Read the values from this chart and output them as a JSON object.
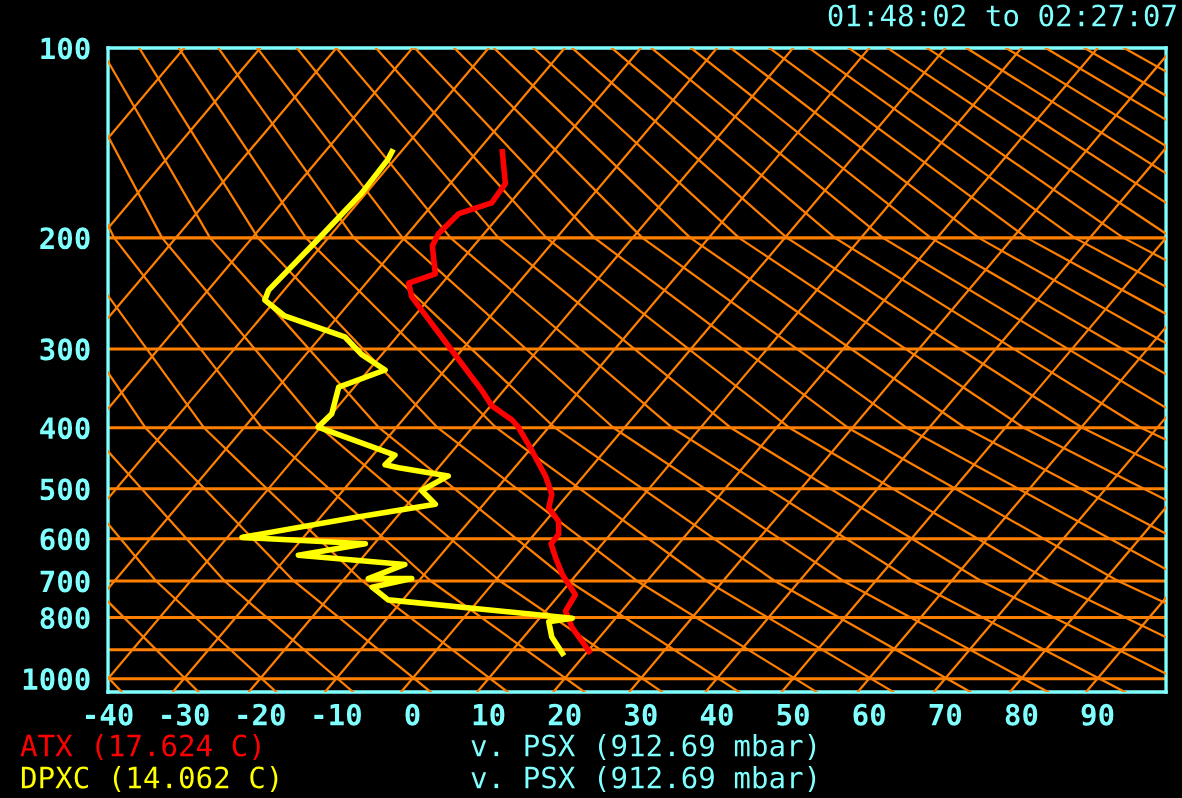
{
  "chart_data": {
    "type": "line",
    "xlim": [
      -40,
      99
    ],
    "xticks": [
      -40,
      -30,
      -20,
      -10,
      0,
      10,
      20,
      30,
      40,
      50,
      60,
      70,
      80,
      90
    ],
    "ylim": [
      1050,
      100
    ],
    "log": "y",
    "yticks": [
      100,
      200,
      300,
      400,
      500,
      600,
      700,
      800,
      {
        "value": 900,
        "label": null
      },
      1000
    ],
    "grid": "y",
    "line_style": "solid",
    "marker": "none",
    "series": [
      {
        "color": "#ff8000",
        "x": [
          -40,
          -30
        ],
        "values": [
          139,
          100
        ]
      },
      {
        "color": "#ff8000",
        "x": [
          -40,
          -20
        ],
        "values": [
          193,
          100
        ]
      },
      {
        "color": "#ff8000",
        "x": [
          -40,
          -10
        ],
        "values": [
          268,
          100
        ]
      },
      {
        "color": "#ff8000",
        "x": [
          -40,
          0
        ],
        "values": [
          373,
          100
        ]
      },
      {
        "color": "#ff8000",
        "x": [
          -40,
          10
        ],
        "values": [
          518,
          100
        ]
      },
      {
        "color": "#ff8000",
        "x": [
          -40,
          20
        ],
        "values": [
          720,
          100
        ]
      },
      {
        "color": "#ff8000",
        "x": [
          -40,
          30
        ],
        "values": [
          1000,
          100
        ]
      },
      {
        "color": "#ff8000",
        "x": [
          -31.5,
          40
        ],
        "values": [
          1050,
          100
        ]
      },
      {
        "color": "#ff8000",
        "x": [
          -21.5,
          50
        ],
        "values": [
          1050,
          100
        ]
      },
      {
        "color": "#ff8000",
        "x": [
          -11.5,
          60
        ],
        "values": [
          1050,
          100
        ]
      },
      {
        "color": "#ff8000",
        "x": [
          -1.5,
          70
        ],
        "values": [
          1050,
          100
        ]
      },
      {
        "color": "#ff8000",
        "x": [
          8.5,
          80
        ],
        "values": [
          1050,
          100
        ]
      },
      {
        "color": "#ff8000",
        "x": [
          18.5,
          90
        ],
        "values": [
          1050,
          100
        ]
      },
      {
        "color": "#ff8000",
        "x": [
          28.5,
          99
        ],
        "values": [
          1050,
          103
        ]
      },
      {
        "color": "#ff8000",
        "x": [
          38.5,
          99
        ],
        "values": [
          1050,
          144
        ]
      },
      {
        "color": "#ff8000",
        "x": [
          48.5,
          99
        ],
        "values": [
          1050,
          200
        ]
      },
      {
        "color": "#ff8000",
        "x": [
          58.5,
          99
        ],
        "values": [
          1050,
          277
        ]
      },
      {
        "color": "#ff8000",
        "x": [
          68.5,
          99
        ],
        "values": [
          1050,
          385
        ]
      },
      {
        "color": "#ff8000",
        "x": [
          78.5,
          99
        ],
        "values": [
          1050,
          535
        ]
      },
      {
        "color": "#ff8000",
        "x": [
          88.5,
          99
        ],
        "values": [
          1050,
          744
        ]
      },
      {
        "color": "#ff8000",
        "x": [
          -38.2,
          -40
        ],
        "values": [
          1050,
          995
        ]
      },
      {
        "color": "#ff8000",
        "x": [
          -28.1,
          -40
        ],
        "values": [
          1050,
          755
        ]
      },
      {
        "color": "#ff8000",
        "x": [
          -17.9,
          -33.7,
          -40
        ],
        "values": [
          1050,
          700,
          568
        ]
      },
      {
        "color": "#ff8000",
        "x": [
          -7.8,
          -24.7,
          -40
        ],
        "values": [
          1050,
          700,
          436
        ]
      },
      {
        "color": "#ff8000",
        "x": [
          2.4,
          -15.6,
          -35.1,
          -40
        ],
        "values": [
          1050,
          700,
          400,
          327
        ]
      },
      {
        "color": "#ff8000",
        "x": [
          12.5,
          -6.6,
          -27.4,
          -40
        ],
        "values": [
          1050,
          700,
          400,
          247
        ]
      },
      {
        "color": "#ff8000",
        "x": [
          22.6,
          2.4,
          -19.8,
          -39.2,
          -40
        ],
        "values": [
          1050,
          700,
          400,
          200,
          191
        ]
      },
      {
        "color": "#ff8000",
        "x": [
          32.8,
          11.5,
          -12.1,
          -32.9,
          -40
        ],
        "values": [
          1050,
          700,
          400,
          200,
          138
        ]
      },
      {
        "color": "#ff8000",
        "x": [
          42.9,
          20.5,
          -4.4,
          -26.6,
          -40
        ],
        "values": [
          1050,
          700,
          400,
          200,
          105
        ]
      },
      {
        "color": "#ff8000",
        "x": [
          53.1,
          29.5,
          3.3,
          -20.3,
          -35.9
        ],
        "values": [
          1050,
          700,
          400,
          200,
          100
        ]
      },
      {
        "color": "#ff8000",
        "x": [
          63.2,
          38.6,
          11.0,
          -14.0,
          -30.7
        ],
        "values": [
          1050,
          700,
          400,
          200,
          100
        ]
      },
      {
        "color": "#ff8000",
        "x": [
          73.3,
          47.6,
          18.7,
          -7.7,
          -25.5
        ],
        "values": [
          1050,
          700,
          400,
          200,
          100
        ]
      },
      {
        "color": "#ff8000",
        "x": [
          83.5,
          56.6,
          26.4,
          -1.3,
          -20.4
        ],
        "values": [
          1050,
          700,
          400,
          200,
          100
        ]
      },
      {
        "color": "#ff8000",
        "x": [
          93.6,
          65.7,
          34.1,
          5.0,
          -15.2
        ],
        "values": [
          1050,
          700,
          400,
          200,
          100
        ]
      },
      {
        "color": "#ff8000",
        "x": [
          99,
          74.7,
          41.8,
          11.3,
          -10.0
        ],
        "values": [
          982,
          700,
          400,
          200,
          100
        ]
      },
      {
        "color": "#ff8000",
        "x": [
          99,
          83.7,
          49.5,
          17.6,
          -4.8
        ],
        "values": [
          860,
          700,
          400,
          200,
          100
        ]
      },
      {
        "color": "#ff8000",
        "x": [
          99,
          92.7,
          57.2,
          23.9,
          0.3
        ],
        "values": [
          759,
          700,
          400,
          200,
          100
        ]
      },
      {
        "color": "#ff8000",
        "x": [
          99,
          64.9,
          30.2,
          5.5
        ],
        "values": [
          671,
          400,
          200,
          100
        ]
      },
      {
        "color": "#ff8000",
        "x": [
          99,
          72.6,
          36.5,
          10.7
        ],
        "values": [
          589,
          400,
          200,
          100
        ]
      },
      {
        "color": "#ff8000",
        "x": [
          99,
          80.3,
          42.9,
          15.9
        ],
        "values": [
          521,
          400,
          200,
          100
        ]
      },
      {
        "color": "#ff8000",
        "x": [
          99,
          88.0,
          49.2,
          21.0
        ],
        "values": [
          465,
          400,
          200,
          100
        ]
      },
      {
        "color": "#ff8000",
        "x": [
          99,
          95.7,
          55.5,
          26.2
        ],
        "values": [
          418,
          400,
          200,
          100
        ]
      },
      {
        "color": "#ff8000",
        "x": [
          99,
          61.8,
          31.4
        ],
        "values": [
          372,
          200,
          100
        ]
      },
      {
        "color": "#ff8000",
        "x": [
          99,
          68.1,
          36.6
        ],
        "values": [
          329,
          200,
          100
        ]
      },
      {
        "color": "#ff8000",
        "x": [
          99,
          74.4,
          41.8
        ],
        "values": [
          294,
          200,
          100
        ]
      },
      {
        "color": "#ff8000",
        "x": [
          99,
          80.7,
          46.9
        ],
        "values": [
          264,
          200,
          100
        ]
      },
      {
        "color": "#ff8000",
        "x": [
          99,
          87.0,
          52.1
        ],
        "values": [
          239,
          200,
          100
        ]
      },
      {
        "color": "#ff8000",
        "x": [
          99,
          93.4,
          57.3
        ],
        "values": [
          217,
          200,
          100
        ]
      },
      {
        "color": "#ff8000",
        "x": [
          99,
          62.4
        ],
        "values": [
          197,
          100
        ]
      },
      {
        "color": "#ff8000",
        "x": [
          99,
          67.6
        ],
        "values": [
          176,
          100
        ]
      },
      {
        "color": "#ff8000",
        "x": [
          99,
          72.8
        ],
        "values": [
          158,
          100
        ]
      },
      {
        "color": "#ff8000",
        "x": [
          99,
          78.0
        ],
        "values": [
          143,
          100
        ]
      },
      {
        "color": "#ff8000",
        "x": [
          99,
          83.2
        ],
        "values": [
          130,
          100
        ]
      },
      {
        "color": "#ff8000",
        "x": [
          99,
          88.3
        ],
        "values": [
          119,
          100
        ]
      },
      {
        "color": "#ff8000",
        "x": [
          99,
          93.5
        ],
        "values": [
          109,
          100
        ]
      },
      {
        "name": "ATX (17.624 C)",
        "color": "#ff0000",
        "x": [
          11.8,
          12.2,
          10.4,
          6.1,
          3.4,
          2.6,
          3.0,
          -0.5,
          -0.1,
          5.2,
          9.1,
          10.4,
          13.1,
          13.9,
          15.7,
          17.5,
          18.3,
          17.9,
          19.2,
          19.2,
          18.2,
          18.8,
          19.7,
          21.4,
          20.1,
          21.0,
          23.2
        ],
        "values": [
          146,
          164,
          176,
          183,
          197,
          206,
          228,
          236,
          248,
          302,
          349,
          369,
          389,
          399,
          435,
          478,
          510,
          536,
          563,
          590,
          611,
          643,
          684,
          736,
          781,
          831,
          905
        ]
      },
      {
        "name": "DPXC (14.062 C)",
        "color": "#ffff00",
        "x": [
          -2.7,
          -3.2,
          -6.7,
          -12.4,
          -18.9,
          -19.4,
          -16.8,
          -8.9,
          -6.7,
          -3.6,
          -9.7,
          -10.6,
          -12.4,
          -2.3,
          -3.6,
          -1.8,
          4.7,
          1.2,
          3.0,
          -7.6,
          -22.4,
          -6.2,
          -15.0,
          -1.0,
          -5.8,
          -0.1,
          -5.3,
          -3.2,
          21.0,
          17.9,
          18.3,
          19.7
        ],
        "values": [
          146,
          150,
          170,
          201,
          242,
          251,
          266,
          287,
          306,
          324,
          345,
          380,
          399,
          442,
          458,
          463,
          477,
          503,
          529,
          555,
          597,
          611,
          637,
          659,
          694,
          694,
          716,
          750,
          802,
          812,
          859,
          912
        ]
      }
    ],
    "annotations": [
      "01:48:02 to 02:27:07",
      "v. PSX (912.69 mbar)",
      "v. PSX (912.69 mbar)"
    ]
  }
}
